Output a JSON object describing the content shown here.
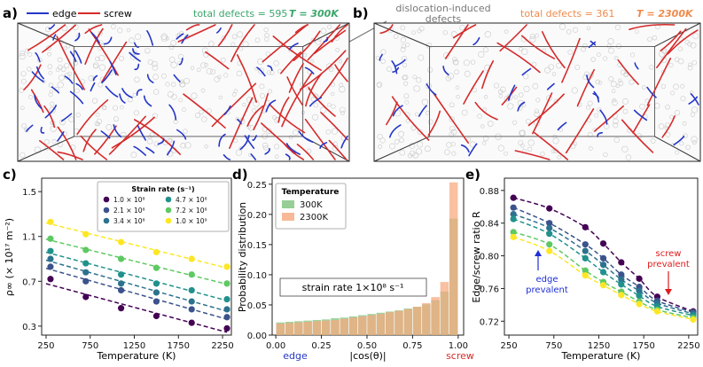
{
  "top": {
    "legend_edge": "edge",
    "legend_screw": "screw",
    "panel_a": {
      "label": "a)",
      "defects_text": "total defects = 595",
      "temp_text": "T = 300K"
    },
    "panel_b": {
      "label": "b)",
      "defects_text": "total defects = 361",
      "temp_text": "T = 2300K"
    },
    "annotation": "dislocation-induced defects",
    "annotation_lines": [
      "dislocation-induced",
      "defects"
    ]
  },
  "colors": {
    "edge": "#2436c8",
    "screw": "#d62a2a",
    "green_text": "#3aa66a",
    "orange_text": "#f08a4b"
  },
  "chart_data": [
    {
      "panel": "c)",
      "type": "scatter",
      "xlabel": "Temperature (K)",
      "ylabel": "ρ∞ (× 10¹⁷ m⁻²)",
      "xlim": [
        200,
        2350
      ],
      "ylim": [
        0.22,
        1.62
      ],
      "xticks": [
        250,
        750,
        1250,
        1750,
        2250
      ],
      "yticks": [
        0.3,
        0.7,
        1.1,
        1.5
      ],
      "legend_title": "Strain rate (s⁻¹)",
      "x": [
        300,
        700,
        1100,
        1500,
        1900,
        2300
      ],
      "series": [
        {
          "name": "1.0 × 10⁸",
          "color": "#440154",
          "values": [
            0.72,
            0.56,
            0.46,
            0.39,
            0.33,
            0.28
          ]
        },
        {
          "name": "2.1 × 10⁸",
          "color": "#3b528b",
          "values": [
            0.83,
            0.7,
            0.62,
            0.52,
            0.45,
            0.38
          ]
        },
        {
          "name": "3.4 × 10⁸",
          "color": "#2c728e",
          "values": [
            0.9,
            0.78,
            0.68,
            0.6,
            0.52,
            0.45
          ]
        },
        {
          "name": "4.7 × 10⁸",
          "color": "#21918c",
          "values": [
            0.97,
            0.86,
            0.76,
            0.68,
            0.62,
            0.54
          ]
        },
        {
          "name": "7.2 × 10⁸",
          "color": "#5ec962",
          "values": [
            1.08,
            0.98,
            0.9,
            0.82,
            0.76,
            0.68
          ]
        },
        {
          "name": "1.0 × 10⁹",
          "color": "#fde725",
          "values": [
            1.23,
            1.12,
            1.05,
            0.96,
            0.9,
            0.83
          ]
        }
      ]
    },
    {
      "panel": "d)",
      "type": "bar",
      "xlabel": "|cos(θ)|",
      "ylabel": "Probability distribution",
      "xlim": [
        -0.02,
        1.03
      ],
      "ylim": [
        0,
        0.26
      ],
      "xticks": [
        "0.00",
        "0.25",
        "0.50",
        "0.75",
        "1.00"
      ],
      "yticks": [
        "0.00",
        "0.05",
        "0.10",
        "0.15",
        "0.20",
        "0.25"
      ],
      "x_left_label": "edge",
      "x_right_label": "screw",
      "legend_title": "Temperature",
      "annotation": "strain rate 1×10⁸ s⁻¹",
      "categories": [
        0.025,
        0.075,
        0.125,
        0.175,
        0.225,
        0.275,
        0.325,
        0.375,
        0.425,
        0.475,
        0.525,
        0.575,
        0.625,
        0.675,
        0.725,
        0.775,
        0.825,
        0.875,
        0.925,
        0.975
      ],
      "series": [
        {
          "name": "300K",
          "color": "#7cc27c",
          "values": [
            0.021,
            0.022,
            0.023,
            0.024,
            0.025,
            0.026,
            0.028,
            0.029,
            0.031,
            0.033,
            0.035,
            0.037,
            0.039,
            0.041,
            0.044,
            0.047,
            0.051,
            0.058,
            0.072,
            0.193
          ]
        },
        {
          "name": "2300K",
          "color": "#f6a77d",
          "values": [
            0.019,
            0.02,
            0.021,
            0.022,
            0.023,
            0.024,
            0.025,
            0.027,
            0.029,
            0.031,
            0.033,
            0.035,
            0.038,
            0.04,
            0.043,
            0.047,
            0.053,
            0.063,
            0.088,
            0.253
          ]
        }
      ]
    },
    {
      "panel": "e)",
      "type": "scatter",
      "xlabel": "Temperature (K)",
      "ylabel": "Edge/screw ratio R",
      "xlim": [
        200,
        2350
      ],
      "ylim": [
        0.703,
        0.895
      ],
      "xticks": [
        250,
        750,
        1250,
        1750,
        2250
      ],
      "yticks": [
        0.72,
        0.76,
        0.8,
        0.84,
        0.88
      ],
      "ann_edge": [
        "edge",
        "prevalent"
      ],
      "ann_screw": [
        "screw",
        "prevalent"
      ],
      "x": [
        300,
        700,
        1100,
        1300,
        1500,
        1700,
        1900,
        2300
      ],
      "series": [
        {
          "name": "1.0 × 10⁸",
          "color": "#440154",
          "values": [
            0.871,
            0.858,
            0.835,
            0.815,
            0.792,
            0.772,
            0.75,
            0.732
          ]
        },
        {
          "name": "2.1 × 10⁸",
          "color": "#3b528b",
          "values": [
            0.859,
            0.84,
            0.814,
            0.797,
            0.777,
            0.762,
            0.745,
            0.731
          ]
        },
        {
          "name": "3.4 × 10⁸",
          "color": "#2c728e",
          "values": [
            0.851,
            0.834,
            0.806,
            0.789,
            0.771,
            0.757,
            0.742,
            0.729
          ]
        },
        {
          "name": "4.7 × 10⁸",
          "color": "#21918c",
          "values": [
            0.845,
            0.827,
            0.797,
            0.78,
            0.765,
            0.751,
            0.738,
            0.727
          ]
        },
        {
          "name": "7.2 × 10⁸",
          "color": "#5ec962",
          "values": [
            0.829,
            0.814,
            0.782,
            0.768,
            0.756,
            0.744,
            0.734,
            0.724
          ]
        },
        {
          "name": "1.0 × 10⁹",
          "color": "#fde725",
          "values": [
            0.823,
            0.806,
            0.776,
            0.764,
            0.752,
            0.741,
            0.732,
            0.722
          ]
        }
      ]
    }
  ]
}
